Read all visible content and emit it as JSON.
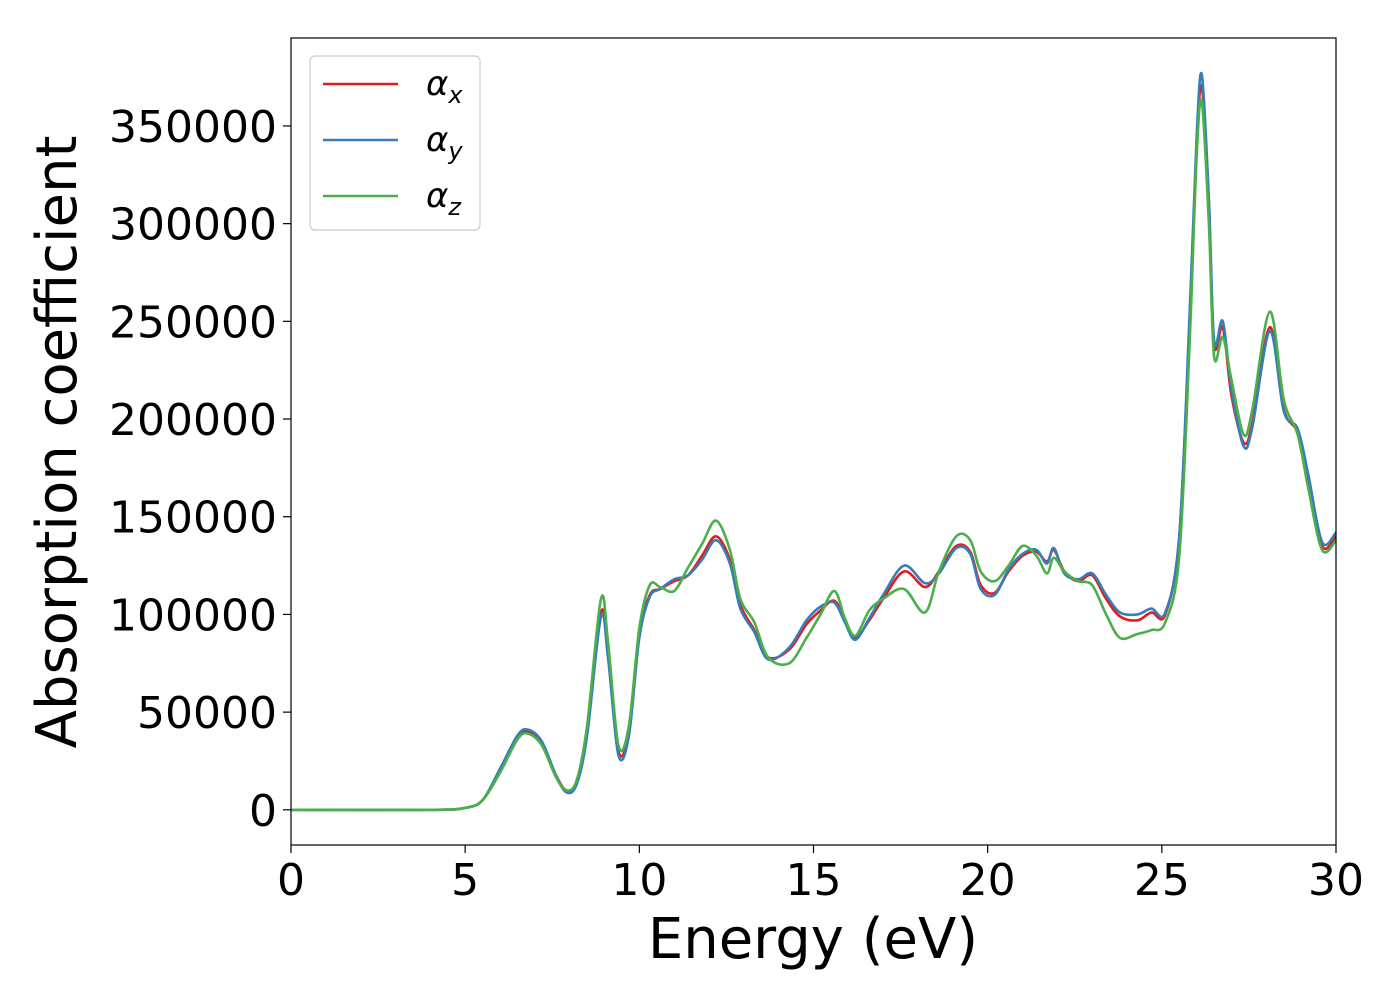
{
  "chart_data": {
    "type": "line",
    "title": "",
    "xlabel": "Energy (eV)",
    "ylabel": "Absorption coefficient",
    "xlim": [
      0,
      30
    ],
    "ylim": [
      -18000,
      395000
    ],
    "xticks": [
      0,
      5,
      10,
      15,
      20,
      25,
      30
    ],
    "yticks": [
      0,
      50000,
      100000,
      150000,
      200000,
      250000,
      300000,
      350000
    ],
    "grid": false,
    "legend_position": "top-left",
    "series": [
      {
        "name": "α",
        "subscript": "x",
        "color": "#e41a1c",
        "points": [
          [
            0,
            0
          ],
          [
            4,
            0
          ],
          [
            5,
            1000
          ],
          [
            5.5,
            5000
          ],
          [
            6,
            20000
          ],
          [
            6.5,
            37000
          ],
          [
            6.8,
            40000
          ],
          [
            7.2,
            34000
          ],
          [
            7.6,
            18000
          ],
          [
            7.9,
            10000
          ],
          [
            8.2,
            14000
          ],
          [
            8.5,
            40000
          ],
          [
            8.9,
            101000
          ],
          [
            9.1,
            80000
          ],
          [
            9.4,
            30000
          ],
          [
            9.7,
            40000
          ],
          [
            10,
            90000
          ],
          [
            10.3,
            110000
          ],
          [
            10.6,
            113000
          ],
          [
            11,
            117000
          ],
          [
            11.4,
            120000
          ],
          [
            11.8,
            130000
          ],
          [
            12.2,
            140000
          ],
          [
            12.6,
            128000
          ],
          [
            12.9,
            105000
          ],
          [
            13.3,
            92000
          ],
          [
            13.7,
            78000
          ],
          [
            14.3,
            82000
          ],
          [
            14.8,
            95000
          ],
          [
            15.2,
            102000
          ],
          [
            15.6,
            107000
          ],
          [
            15.9,
            97000
          ],
          [
            16.2,
            88000
          ],
          [
            16.6,
            97000
          ],
          [
            17,
            108000
          ],
          [
            17.6,
            122000
          ],
          [
            18.2,
            114000
          ],
          [
            18.6,
            122000
          ],
          [
            19.1,
            135000
          ],
          [
            19.5,
            132000
          ],
          [
            19.8,
            115000
          ],
          [
            20.2,
            111000
          ],
          [
            20.6,
            122000
          ],
          [
            21,
            130000
          ],
          [
            21.4,
            132000
          ],
          [
            21.7,
            127000
          ],
          [
            21.9,
            133000
          ],
          [
            22.2,
            122000
          ],
          [
            22.6,
            117000
          ],
          [
            23,
            120000
          ],
          [
            23.4,
            108000
          ],
          [
            23.8,
            99000
          ],
          [
            24.3,
            97000
          ],
          [
            24.7,
            101000
          ],
          [
            25.1,
            100000
          ],
          [
            25.5,
            140000
          ],
          [
            25.8,
            250000
          ],
          [
            26,
            340000
          ],
          [
            26.15,
            370000
          ],
          [
            26.35,
            310000
          ],
          [
            26.5,
            238000
          ],
          [
            26.75,
            247000
          ],
          [
            27,
            212000
          ],
          [
            27.35,
            188000
          ],
          [
            27.6,
            198000
          ],
          [
            28.1,
            247000
          ],
          [
            28.5,
            205000
          ],
          [
            28.9,
            193000
          ],
          [
            29.2,
            170000
          ],
          [
            29.6,
            135000
          ],
          [
            30,
            140000
          ]
        ]
      },
      {
        "name": "α",
        "subscript": "y",
        "color": "#377eb8",
        "points": [
          [
            0,
            0
          ],
          [
            4,
            0
          ],
          [
            5,
            1000
          ],
          [
            5.5,
            5000
          ],
          [
            6,
            21000
          ],
          [
            6.5,
            38000
          ],
          [
            6.8,
            41000
          ],
          [
            7.2,
            35000
          ],
          [
            7.6,
            18000
          ],
          [
            7.9,
            9000
          ],
          [
            8.2,
            13000
          ],
          [
            8.5,
            38000
          ],
          [
            8.9,
            99000
          ],
          [
            9.1,
            78000
          ],
          [
            9.4,
            28000
          ],
          [
            9.7,
            38000
          ],
          [
            10,
            88000
          ],
          [
            10.3,
            109000
          ],
          [
            10.6,
            113000
          ],
          [
            11,
            118000
          ],
          [
            11.4,
            120000
          ],
          [
            11.8,
            128000
          ],
          [
            12.2,
            138000
          ],
          [
            12.6,
            126000
          ],
          [
            12.9,
            103000
          ],
          [
            13.3,
            91000
          ],
          [
            13.7,
            77000
          ],
          [
            14.3,
            83000
          ],
          [
            14.8,
            97000
          ],
          [
            15.2,
            104000
          ],
          [
            15.6,
            106000
          ],
          [
            15.9,
            96000
          ],
          [
            16.2,
            87000
          ],
          [
            16.6,
            98000
          ],
          [
            17,
            110000
          ],
          [
            17.6,
            125000
          ],
          [
            18.2,
            116000
          ],
          [
            18.6,
            121000
          ],
          [
            19.1,
            134000
          ],
          [
            19.5,
            131000
          ],
          [
            19.8,
            113000
          ],
          [
            20.2,
            110000
          ],
          [
            20.6,
            123000
          ],
          [
            21,
            131000
          ],
          [
            21.4,
            133000
          ],
          [
            21.7,
            126000
          ],
          [
            21.9,
            134000
          ],
          [
            22.2,
            121000
          ],
          [
            22.6,
            118000
          ],
          [
            23,
            121000
          ],
          [
            23.4,
            110000
          ],
          [
            23.8,
            101000
          ],
          [
            24.3,
            100000
          ],
          [
            24.7,
            103000
          ],
          [
            25.1,
            101000
          ],
          [
            25.5,
            140000
          ],
          [
            25.8,
            255000
          ],
          [
            26,
            345000
          ],
          [
            26.15,
            376000
          ],
          [
            26.35,
            312000
          ],
          [
            26.5,
            240000
          ],
          [
            26.75,
            250000
          ],
          [
            27,
            215000
          ],
          [
            27.35,
            186000
          ],
          [
            27.6,
            196000
          ],
          [
            28.1,
            245000
          ],
          [
            28.5,
            204000
          ],
          [
            28.9,
            195000
          ],
          [
            29.2,
            172000
          ],
          [
            29.6,
            137000
          ],
          [
            30,
            142000
          ]
        ]
      },
      {
        "name": "α",
        "subscript": "z",
        "color": "#4daf4a",
        "points": [
          [
            0,
            0
          ],
          [
            4,
            0
          ],
          [
            5,
            1000
          ],
          [
            5.5,
            5000
          ],
          [
            6,
            19000
          ],
          [
            6.5,
            36000
          ],
          [
            6.8,
            39000
          ],
          [
            7.2,
            33000
          ],
          [
            7.6,
            17000
          ],
          [
            7.9,
            10000
          ],
          [
            8.2,
            15000
          ],
          [
            8.5,
            43000
          ],
          [
            8.9,
            108000
          ],
          [
            9.1,
            86000
          ],
          [
            9.4,
            33000
          ],
          [
            9.7,
            43000
          ],
          [
            10,
            93000
          ],
          [
            10.3,
            115000
          ],
          [
            10.6,
            114000
          ],
          [
            11,
            112000
          ],
          [
            11.4,
            124000
          ],
          [
            11.8,
            136000
          ],
          [
            12.2,
            148000
          ],
          [
            12.6,
            133000
          ],
          [
            12.9,
            108000
          ],
          [
            13.3,
            96000
          ],
          [
            13.7,
            78000
          ],
          [
            14.3,
            75000
          ],
          [
            14.8,
            88000
          ],
          [
            15.2,
            100000
          ],
          [
            15.6,
            112000
          ],
          [
            15.9,
            98000
          ],
          [
            16.2,
            89000
          ],
          [
            16.6,
            102000
          ],
          [
            17,
            108000
          ],
          [
            17.6,
            113000
          ],
          [
            18.2,
            101000
          ],
          [
            18.6,
            122000
          ],
          [
            19.1,
            140000
          ],
          [
            19.5,
            138000
          ],
          [
            19.8,
            122000
          ],
          [
            20.2,
            117000
          ],
          [
            20.6,
            125000
          ],
          [
            21,
            135000
          ],
          [
            21.4,
            130000
          ],
          [
            21.7,
            121000
          ],
          [
            21.9,
            129000
          ],
          [
            22.2,
            122000
          ],
          [
            22.6,
            117000
          ],
          [
            23,
            115000
          ],
          [
            23.4,
            100000
          ],
          [
            23.8,
            88000
          ],
          [
            24.3,
            90000
          ],
          [
            24.7,
            92000
          ],
          [
            25.1,
            96000
          ],
          [
            25.5,
            130000
          ],
          [
            25.8,
            240000
          ],
          [
            26,
            335000
          ],
          [
            26.15,
            362000
          ],
          [
            26.35,
            300000
          ],
          [
            26.5,
            232000
          ],
          [
            26.75,
            242000
          ],
          [
            27,
            220000
          ],
          [
            27.35,
            192000
          ],
          [
            27.6,
            205000
          ],
          [
            28.1,
            255000
          ],
          [
            28.5,
            210000
          ],
          [
            28.9,
            192000
          ],
          [
            29.2,
            165000
          ],
          [
            29.6,
            133000
          ],
          [
            30,
            138000
          ]
        ]
      }
    ]
  }
}
